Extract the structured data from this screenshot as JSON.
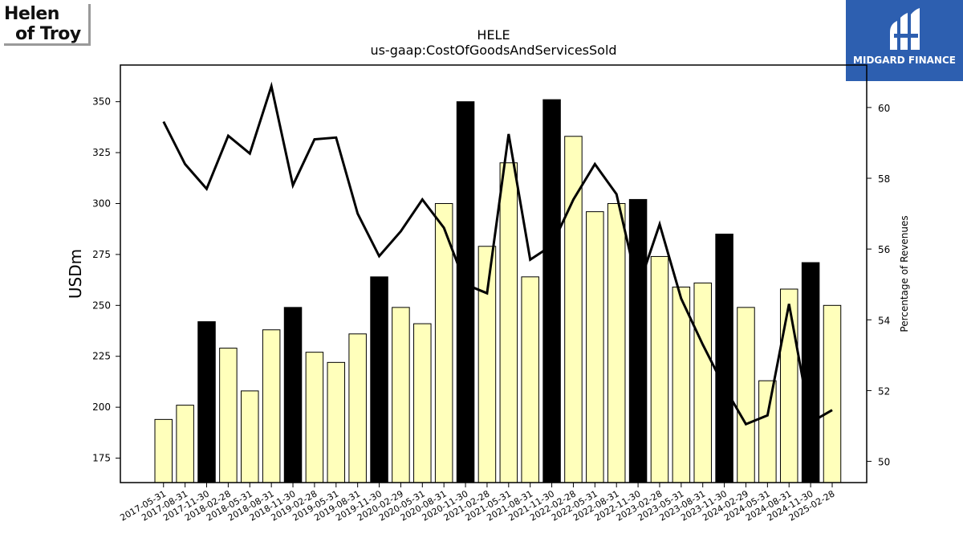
{
  "branding": {
    "company_logo_line1": "Helen",
    "company_logo_line2": "of Troy",
    "publisher_logo_text": "MIDGARD FINANCE"
  },
  "chart_data": {
    "type": "bar",
    "title": "HELE",
    "subtitle": "us-gaap:CostOfGoodsAndServicesSold",
    "ylabel": "USDm",
    "y2label": "Percentage of Revenues",
    "ylim": [
      163,
      368
    ],
    "y2lim": [
      49.4,
      61.2
    ],
    "yticks": [
      175,
      200,
      225,
      250,
      275,
      300,
      325,
      350
    ],
    "y2ticks": [
      50,
      52,
      54,
      56,
      58,
      60
    ],
    "bar_colors": {
      "default": "#ffffbb",
      "highlight": "#000000",
      "line": "#000000"
    },
    "categories": [
      "2017-05-31",
      "2017-08-31",
      "2017-11-30",
      "2018-02-28",
      "2018-05-31",
      "2018-08-31",
      "2018-11-30",
      "2019-02-28",
      "2019-05-31",
      "2019-08-31",
      "2019-11-30",
      "2020-02-29",
      "2020-05-31",
      "2020-08-31",
      "2020-11-30",
      "2021-02-28",
      "2021-05-31",
      "2021-08-31",
      "2021-11-30",
      "2022-02-28",
      "2022-05-31",
      "2022-08-31",
      "2022-11-30",
      "2023-02-28",
      "2023-05-31",
      "2023-08-31",
      "2023-11-30",
      "2024-02-29",
      "2024-05-31",
      "2024-08-31",
      "2024-11-30",
      "2025-02-28"
    ],
    "series": [
      {
        "type": "bar",
        "axis": "left",
        "values": [
          194,
          201,
          242,
          229,
          208,
          238,
          249,
          227,
          222,
          236,
          264,
          249,
          241,
          300,
          350,
          279,
          320,
          264,
          351,
          333,
          296,
          300,
          302,
          274,
          259,
          261,
          285,
          249,
          213,
          258,
          271,
          250
        ],
        "highlight": [
          false,
          false,
          true,
          false,
          false,
          false,
          true,
          false,
          false,
          false,
          true,
          false,
          false,
          false,
          true,
          false,
          false,
          false,
          true,
          false,
          false,
          false,
          true,
          false,
          false,
          false,
          true,
          false,
          false,
          false,
          true,
          false
        ]
      },
      {
        "type": "line",
        "axis": "right",
        "values": [
          59.6,
          58.4,
          57.7,
          59.2,
          58.7,
          60.6,
          57.8,
          59.1,
          59.15,
          57.0,
          55.8,
          56.5,
          57.4,
          56.6,
          55.0,
          54.75,
          59.25,
          55.7,
          56.1,
          57.4,
          58.4,
          57.55,
          54.9,
          56.7,
          54.6,
          53.3,
          52.1,
          51.05,
          51.3,
          54.45,
          51.1,
          51.45
        ]
      }
    ]
  }
}
